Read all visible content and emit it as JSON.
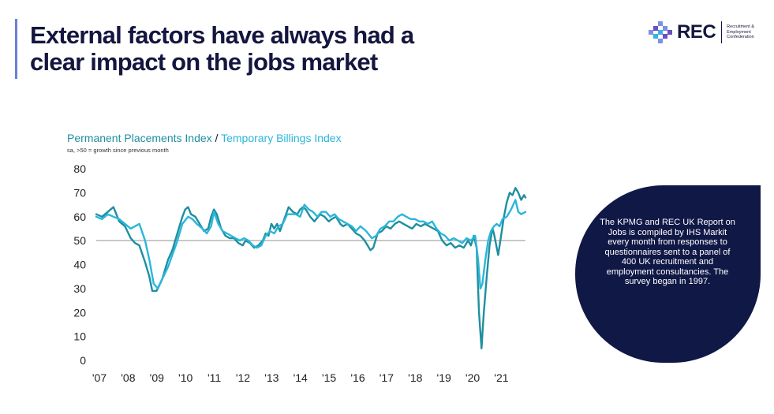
{
  "header": {
    "title": "External factors have always had a clear impact on the jobs market"
  },
  "logo": {
    "word": "REC",
    "subtitle": "Recruitment & Employment Confederation",
    "colors": [
      "#7f8fe3",
      "#6b4fc4",
      "#3bb0e0",
      "#14163f"
    ]
  },
  "chart_header": {
    "series_a": "Permanent Placements Index",
    "slash": "/",
    "series_b": "Temporary Billings Index",
    "note": "sa, >50 = growth since previous month"
  },
  "info_box": {
    "text": "The KPMG and REC UK Report on Jobs is compiled by IHS Markit every month from responses to questionnaires sent to a panel of 400 UK recruitment and employment consultancies. The survey began in 1997."
  },
  "chart_data": {
    "type": "line",
    "title": "Permanent Placements Index / Temporary Billings Index",
    "subtitle": "sa, >50 = growth since previous month",
    "xlabel": "",
    "ylabel": "",
    "ylim": [
      0,
      80
    ],
    "yticks": [
      0,
      10,
      20,
      30,
      40,
      50,
      60,
      70,
      80
    ],
    "xlim": [
      2007,
      2021.95
    ],
    "xticks": [
      "'07",
      "'08",
      "'09",
      "'10",
      "'11",
      "'12",
      "'13",
      "'14",
      "'15",
      "'16",
      "'17",
      "'18",
      "'19",
      "'20",
      "'21"
    ],
    "reference_line": 50,
    "grid": false,
    "legend": "title",
    "series": [
      {
        "name": "Permanent Placements Index",
        "color": "#1e8fa0",
        "points": [
          [
            2007.0,
            61
          ],
          [
            2007.2,
            60
          ],
          [
            2007.4,
            62
          ],
          [
            2007.6,
            64
          ],
          [
            2007.8,
            58
          ],
          [
            2008.0,
            56
          ],
          [
            2008.2,
            51
          ],
          [
            2008.35,
            49
          ],
          [
            2008.5,
            48
          ],
          [
            2008.7,
            41
          ],
          [
            2008.85,
            35
          ],
          [
            2008.95,
            29
          ],
          [
            2009.1,
            29
          ],
          [
            2009.3,
            34
          ],
          [
            2009.5,
            42
          ],
          [
            2009.65,
            46
          ],
          [
            2009.8,
            52
          ],
          [
            2009.9,
            56
          ],
          [
            2010.0,
            60
          ],
          [
            2010.1,
            63
          ],
          [
            2010.2,
            64
          ],
          [
            2010.3,
            61
          ],
          [
            2010.45,
            60
          ],
          [
            2010.6,
            57
          ],
          [
            2010.75,
            54
          ],
          [
            2010.9,
            55
          ],
          [
            2011.0,
            60
          ],
          [
            2011.1,
            63
          ],
          [
            2011.2,
            61
          ],
          [
            2011.35,
            55
          ],
          [
            2011.5,
            52
          ],
          [
            2011.65,
            51
          ],
          [
            2011.8,
            51
          ],
          [
            2011.95,
            49
          ],
          [
            2012.1,
            48
          ],
          [
            2012.2,
            50
          ],
          [
            2012.35,
            49
          ],
          [
            2012.5,
            47
          ],
          [
            2012.65,
            48
          ],
          [
            2012.8,
            50
          ],
          [
            2012.9,
            53
          ],
          [
            2013.0,
            52
          ],
          [
            2013.1,
            57
          ],
          [
            2013.2,
            55
          ],
          [
            2013.3,
            57
          ],
          [
            2013.4,
            54
          ],
          [
            2013.55,
            59
          ],
          [
            2013.7,
            64
          ],
          [
            2013.85,
            62
          ],
          [
            2014.0,
            61
          ],
          [
            2014.1,
            63
          ],
          [
            2014.2,
            64
          ],
          [
            2014.3,
            63
          ],
          [
            2014.45,
            60
          ],
          [
            2014.6,
            58
          ],
          [
            2014.8,
            61
          ],
          [
            2014.95,
            60
          ],
          [
            2015.1,
            58
          ],
          [
            2015.2,
            59
          ],
          [
            2015.35,
            60
          ],
          [
            2015.5,
            57
          ],
          [
            2015.6,
            56
          ],
          [
            2015.75,
            57
          ],
          [
            2015.9,
            55
          ],
          [
            2016.05,
            53
          ],
          [
            2016.2,
            52
          ],
          [
            2016.35,
            50
          ],
          [
            2016.45,
            48
          ],
          [
            2016.55,
            46
          ],
          [
            2016.65,
            47
          ],
          [
            2016.8,
            53
          ],
          [
            2016.95,
            54
          ],
          [
            2017.1,
            56
          ],
          [
            2017.25,
            55
          ],
          [
            2017.4,
            57
          ],
          [
            2017.55,
            58
          ],
          [
            2017.7,
            57
          ],
          [
            2017.85,
            56
          ],
          [
            2018.0,
            55
          ],
          [
            2018.15,
            57
          ],
          [
            2018.3,
            56
          ],
          [
            2018.45,
            57
          ],
          [
            2018.6,
            56
          ],
          [
            2018.75,
            55
          ],
          [
            2018.9,
            54
          ],
          [
            2019.05,
            50
          ],
          [
            2019.2,
            48
          ],
          [
            2019.35,
            49
          ],
          [
            2019.5,
            47
          ],
          [
            2019.65,
            48
          ],
          [
            2019.8,
            47
          ],
          [
            2019.95,
            50
          ],
          [
            2020.05,
            48
          ],
          [
            2020.15,
            52
          ],
          [
            2020.25,
            47
          ],
          [
            2020.33,
            20
          ],
          [
            2020.42,
            5
          ],
          [
            2020.5,
            20
          ],
          [
            2020.6,
            35
          ],
          [
            2020.7,
            48
          ],
          [
            2020.8,
            55
          ],
          [
            2020.85,
            53
          ],
          [
            2020.95,
            47
          ],
          [
            2021.0,
            44
          ],
          [
            2021.1,
            52
          ],
          [
            2021.2,
            60
          ],
          [
            2021.3,
            66
          ],
          [
            2021.4,
            70
          ],
          [
            2021.5,
            69
          ],
          [
            2021.6,
            72
          ],
          [
            2021.7,
            70
          ],
          [
            2021.8,
            67
          ],
          [
            2021.9,
            69
          ],
          [
            2021.95,
            68
          ]
        ]
      },
      {
        "name": "Temporary Billings Index",
        "color": "#2bb6da",
        "points": [
          [
            2007.0,
            60
          ],
          [
            2007.2,
            59
          ],
          [
            2007.4,
            61
          ],
          [
            2007.6,
            60
          ],
          [
            2007.8,
            59
          ],
          [
            2008.0,
            57
          ],
          [
            2008.2,
            55
          ],
          [
            2008.35,
            56
          ],
          [
            2008.5,
            57
          ],
          [
            2008.7,
            50
          ],
          [
            2008.85,
            42
          ],
          [
            2009.0,
            32
          ],
          [
            2009.15,
            30
          ],
          [
            2009.3,
            34
          ],
          [
            2009.5,
            39
          ],
          [
            2009.65,
            44
          ],
          [
            2009.8,
            49
          ],
          [
            2009.9,
            53
          ],
          [
            2010.0,
            57
          ],
          [
            2010.2,
            60
          ],
          [
            2010.35,
            59
          ],
          [
            2010.5,
            57
          ],
          [
            2010.7,
            55
          ],
          [
            2010.85,
            53
          ],
          [
            2011.0,
            56
          ],
          [
            2011.1,
            62
          ],
          [
            2011.25,
            57
          ],
          [
            2011.4,
            54
          ],
          [
            2011.55,
            53
          ],
          [
            2011.7,
            52
          ],
          [
            2011.85,
            51
          ],
          [
            2012.0,
            50
          ],
          [
            2012.15,
            51
          ],
          [
            2012.3,
            50
          ],
          [
            2012.45,
            48
          ],
          [
            2012.6,
            47
          ],
          [
            2012.75,
            48
          ],
          [
            2012.9,
            52
          ],
          [
            2013.05,
            54
          ],
          [
            2013.2,
            53
          ],
          [
            2013.35,
            56
          ],
          [
            2013.5,
            57
          ],
          [
            2013.65,
            61
          ],
          [
            2013.8,
            61
          ],
          [
            2013.95,
            61
          ],
          [
            2014.1,
            60
          ],
          [
            2014.25,
            65
          ],
          [
            2014.4,
            63
          ],
          [
            2014.55,
            62
          ],
          [
            2014.7,
            60
          ],
          [
            2014.85,
            62
          ],
          [
            2015.0,
            62
          ],
          [
            2015.15,
            60
          ],
          [
            2015.3,
            61
          ],
          [
            2015.45,
            59
          ],
          [
            2015.6,
            58
          ],
          [
            2015.75,
            57
          ],
          [
            2015.9,
            56
          ],
          [
            2016.05,
            54
          ],
          [
            2016.2,
            56
          ],
          [
            2016.4,
            54
          ],
          [
            2016.6,
            51
          ],
          [
            2016.75,
            52
          ],
          [
            2016.9,
            55
          ],
          [
            2017.05,
            56
          ],
          [
            2017.2,
            58
          ],
          [
            2017.35,
            58
          ],
          [
            2017.5,
            60
          ],
          [
            2017.65,
            61
          ],
          [
            2017.8,
            60
          ],
          [
            2017.95,
            59
          ],
          [
            2018.1,
            59
          ],
          [
            2018.25,
            58
          ],
          [
            2018.4,
            58
          ],
          [
            2018.55,
            57
          ],
          [
            2018.7,
            58
          ],
          [
            2018.85,
            55
          ],
          [
            2019.0,
            53
          ],
          [
            2019.15,
            52
          ],
          [
            2019.3,
            50
          ],
          [
            2019.45,
            51
          ],
          [
            2019.6,
            50
          ],
          [
            2019.75,
            49
          ],
          [
            2019.9,
            51
          ],
          [
            2020.05,
            50
          ],
          [
            2020.2,
            52
          ],
          [
            2020.3,
            42
          ],
          [
            2020.38,
            30
          ],
          [
            2020.45,
            32
          ],
          [
            2020.55,
            42
          ],
          [
            2020.65,
            50
          ],
          [
            2020.75,
            54
          ],
          [
            2020.85,
            56
          ],
          [
            2020.95,
            57
          ],
          [
            2021.05,
            56
          ],
          [
            2021.15,
            59
          ],
          [
            2021.3,
            60
          ],
          [
            2021.45,
            63
          ],
          [
            2021.6,
            67
          ],
          [
            2021.7,
            62
          ],
          [
            2021.8,
            61
          ],
          [
            2021.95,
            62
          ]
        ]
      }
    ]
  }
}
